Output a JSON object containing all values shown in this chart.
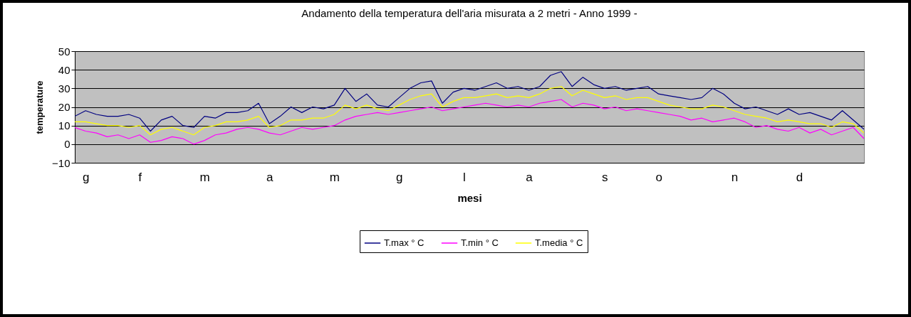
{
  "chart_data": {
    "type": "line",
    "title": "Andamento della temperatura dell'aria misurata a 2 metri - Anno 1999 -",
    "xlabel": "mesi",
    "ylabel": "temperature",
    "categories": [
      null,
      "g",
      null,
      null,
      null,
      null,
      "f",
      null,
      null,
      null,
      null,
      null,
      "m",
      null,
      null,
      null,
      null,
      null,
      "a",
      null,
      null,
      null,
      null,
      null,
      "m",
      null,
      null,
      null,
      null,
      null,
      "g",
      null,
      null,
      null,
      null,
      null,
      "l",
      null,
      null,
      null,
      null,
      null,
      "a",
      null,
      null,
      null,
      null,
      null,
      null,
      "s",
      null,
      null,
      null,
      null,
      "o",
      null,
      null,
      null,
      null,
      null,
      null,
      "n",
      null,
      null,
      null,
      null,
      null,
      "d",
      null,
      null,
      null,
      null,
      null,
      null
    ],
    "ylim": [
      -10,
      50
    ],
    "yticks": [
      -10,
      0,
      10,
      20,
      30,
      40,
      50
    ],
    "grid": "y",
    "legend": "bottom",
    "series": [
      {
        "name": "T.max ° C",
        "color": "#000080",
        "values": [
          15,
          18,
          16,
          15,
          15,
          16,
          14,
          7,
          13,
          15,
          10,
          9,
          15,
          14,
          17,
          17,
          18,
          22,
          11,
          15,
          20,
          17,
          20,
          19,
          21,
          30,
          23,
          27,
          21,
          20,
          25,
          30,
          33,
          34,
          22,
          28,
          30,
          29,
          31,
          33,
          30,
          31,
          29,
          31,
          37,
          39,
          31,
          36,
          32,
          30,
          31,
          29,
          30,
          31,
          27,
          26,
          25,
          24,
          25,
          30,
          27,
          22,
          19,
          20,
          18,
          16,
          19,
          16,
          17,
          15,
          13,
          18,
          13,
          8
        ]
      },
      {
        "name": "T.min ° C",
        "color": "#ff00ff",
        "values": [
          9,
          7,
          6,
          4,
          5,
          3,
          5,
          1,
          2,
          4,
          3,
          0,
          2,
          5,
          6,
          8,
          9,
          8,
          6,
          5,
          7,
          9,
          8,
          9,
          10,
          13,
          15,
          16,
          17,
          16,
          17,
          18,
          19,
          20,
          18,
          19,
          20,
          21,
          22,
          21,
          20,
          21,
          20,
          22,
          23,
          24,
          20,
          22,
          21,
          19,
          20,
          18,
          19,
          18,
          17,
          16,
          15,
          13,
          14,
          12,
          13,
          14,
          12,
          9,
          10,
          8,
          7,
          9,
          6,
          8,
          5,
          7,
          9,
          3
        ]
      },
      {
        "name": "T.media ° C",
        "color": "#ffff00",
        "values": [
          12,
          12,
          11,
          10,
          10,
          9,
          10,
          5,
          8,
          9,
          7,
          5,
          9,
          10,
          12,
          12,
          13,
          15,
          9,
          10,
          13,
          13,
          14,
          14,
          16,
          21,
          19,
          21,
          19,
          18,
          21,
          24,
          26,
          27,
          20,
          23,
          25,
          25,
          26,
          27,
          25,
          26,
          25,
          27,
          30,
          31,
          26,
          29,
          27,
          25,
          26,
          24,
          25,
          25,
          23,
          21,
          20,
          19,
          19,
          21,
          20,
          18,
          16,
          15,
          14,
          12,
          13,
          12,
          11,
          11,
          9,
          12,
          11,
          6
        ]
      }
    ]
  }
}
